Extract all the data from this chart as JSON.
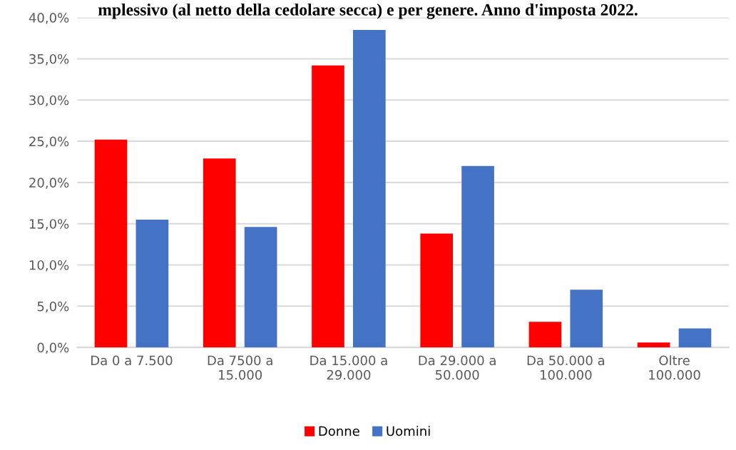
{
  "chart_data": {
    "type": "bar",
    "title": "mplessivo (al netto della cedolare secca) e per genere. Anno d'imposta 2022.",
    "categories": [
      "Da 0 a 7.500",
      "Da 7500 a\n15.000",
      "Da 15.000 a\n29.000",
      "Da 29.000 a\n50.000",
      "Da 50.000 a\n100.000",
      "Oltre\n100.000"
    ],
    "series": [
      {
        "name": "Donne",
        "color": "#ff0000",
        "values": [
          25.2,
          22.9,
          34.2,
          13.8,
          3.1,
          0.6
        ]
      },
      {
        "name": "Uomini",
        "color": "#4472c4",
        "values": [
          15.5,
          14.6,
          38.5,
          22.0,
          7.0,
          2.3
        ]
      }
    ],
    "ylim": [
      0,
      40
    ],
    "yticks": [
      {
        "value": 0,
        "label": "0,0%"
      },
      {
        "value": 5,
        "label": "5,0%"
      },
      {
        "value": 10,
        "label": "10,0%"
      },
      {
        "value": 15,
        "label": "15,0%"
      },
      {
        "value": 20,
        "label": "20,0%"
      },
      {
        "value": 25,
        "label": "25,0%"
      },
      {
        "value": 30,
        "label": "30,0%"
      },
      {
        "value": 35,
        "label": "35,0%"
      },
      {
        "value": 40,
        "label": "40,0%"
      }
    ],
    "grid": "y",
    "legend": "bottom"
  }
}
